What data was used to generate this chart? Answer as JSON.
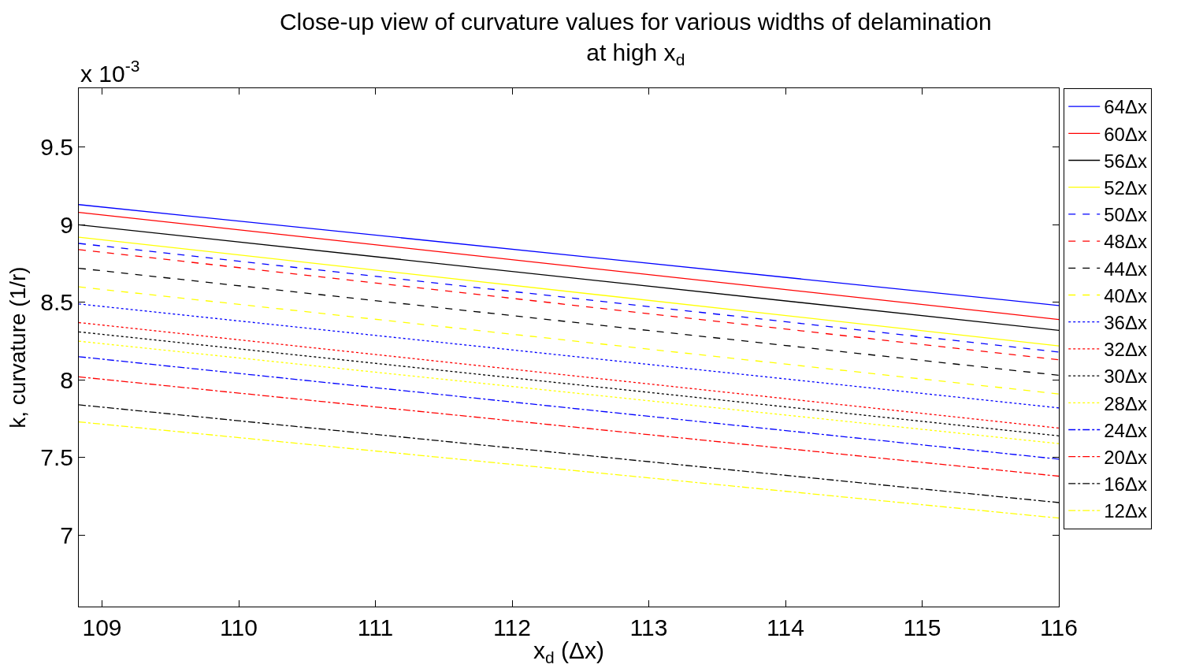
{
  "chart_data": {
    "type": "line",
    "title": "Close-up view of curvature values for various widths of delamination\nat high x$_{d}$",
    "xlabel": "x$_{d}$ (Δx)",
    "ylabel": "k, curvature (1/r)",
    "annotations": [
      "x 10$^{-3}$"
    ],
    "x": [
      108.83,
      116
    ],
    "series": [
      {
        "name": "64Δx",
        "color": "#0000ff",
        "line_style": "solid",
        "values": [
          9.13,
          8.48
        ]
      },
      {
        "name": "60Δx",
        "color": "#ff0000",
        "line_style": "solid",
        "values": [
          9.08,
          8.39
        ]
      },
      {
        "name": "56Δx",
        "color": "#000000",
        "line_style": "solid",
        "values": [
          9.0,
          8.32
        ]
      },
      {
        "name": "52Δx",
        "color": "#ffff00",
        "line_style": "solid",
        "values": [
          8.92,
          8.22
        ]
      },
      {
        "name": "50Δx",
        "color": "#0000ff",
        "line_style": "dashed",
        "values": [
          8.88,
          8.18
        ]
      },
      {
        "name": "48Δx",
        "color": "#ff0000",
        "line_style": "dashed",
        "values": [
          8.84,
          8.13
        ]
      },
      {
        "name": "44Δx",
        "color": "#000000",
        "line_style": "dashed",
        "values": [
          8.72,
          8.03
        ]
      },
      {
        "name": "40Δx",
        "color": "#ffff00",
        "line_style": "dashed",
        "values": [
          8.6,
          7.91
        ]
      },
      {
        "name": "36Δx",
        "color": "#0000ff",
        "line_style": "dotted",
        "values": [
          8.49,
          7.82
        ]
      },
      {
        "name": "32Δx",
        "color": "#ff0000",
        "line_style": "dotted",
        "values": [
          8.37,
          7.69
        ]
      },
      {
        "name": "30Δx",
        "color": "#000000",
        "line_style": "dotted",
        "values": [
          8.31,
          7.64
        ]
      },
      {
        "name": "28Δx",
        "color": "#ffff00",
        "line_style": "dotted",
        "values": [
          8.25,
          7.59
        ]
      },
      {
        "name": "24Δx",
        "color": "#0000ff",
        "line_style": "dashdot",
        "values": [
          8.15,
          7.49
        ]
      },
      {
        "name": "20Δx",
        "color": "#ff0000",
        "line_style": "dashdot",
        "values": [
          8.02,
          7.38
        ]
      },
      {
        "name": "16Δx",
        "color": "#000000",
        "line_style": "dashdot",
        "values": [
          7.84,
          7.21
        ]
      },
      {
        "name": "12Δx",
        "color": "#ffff00",
        "line_style": "dashdot",
        "values": [
          7.73,
          7.11
        ]
      }
    ],
    "xlim": [
      108.83,
      116
    ],
    "xticks": [
      109,
      110,
      111,
      112,
      113,
      114,
      115,
      116
    ],
    "ylim": [
      6.54,
      9.88
    ],
    "yticks": [
      7,
      7.5,
      8,
      8.5,
      9,
      9.5
    ],
    "legend": "right",
    "marker": "none"
  }
}
